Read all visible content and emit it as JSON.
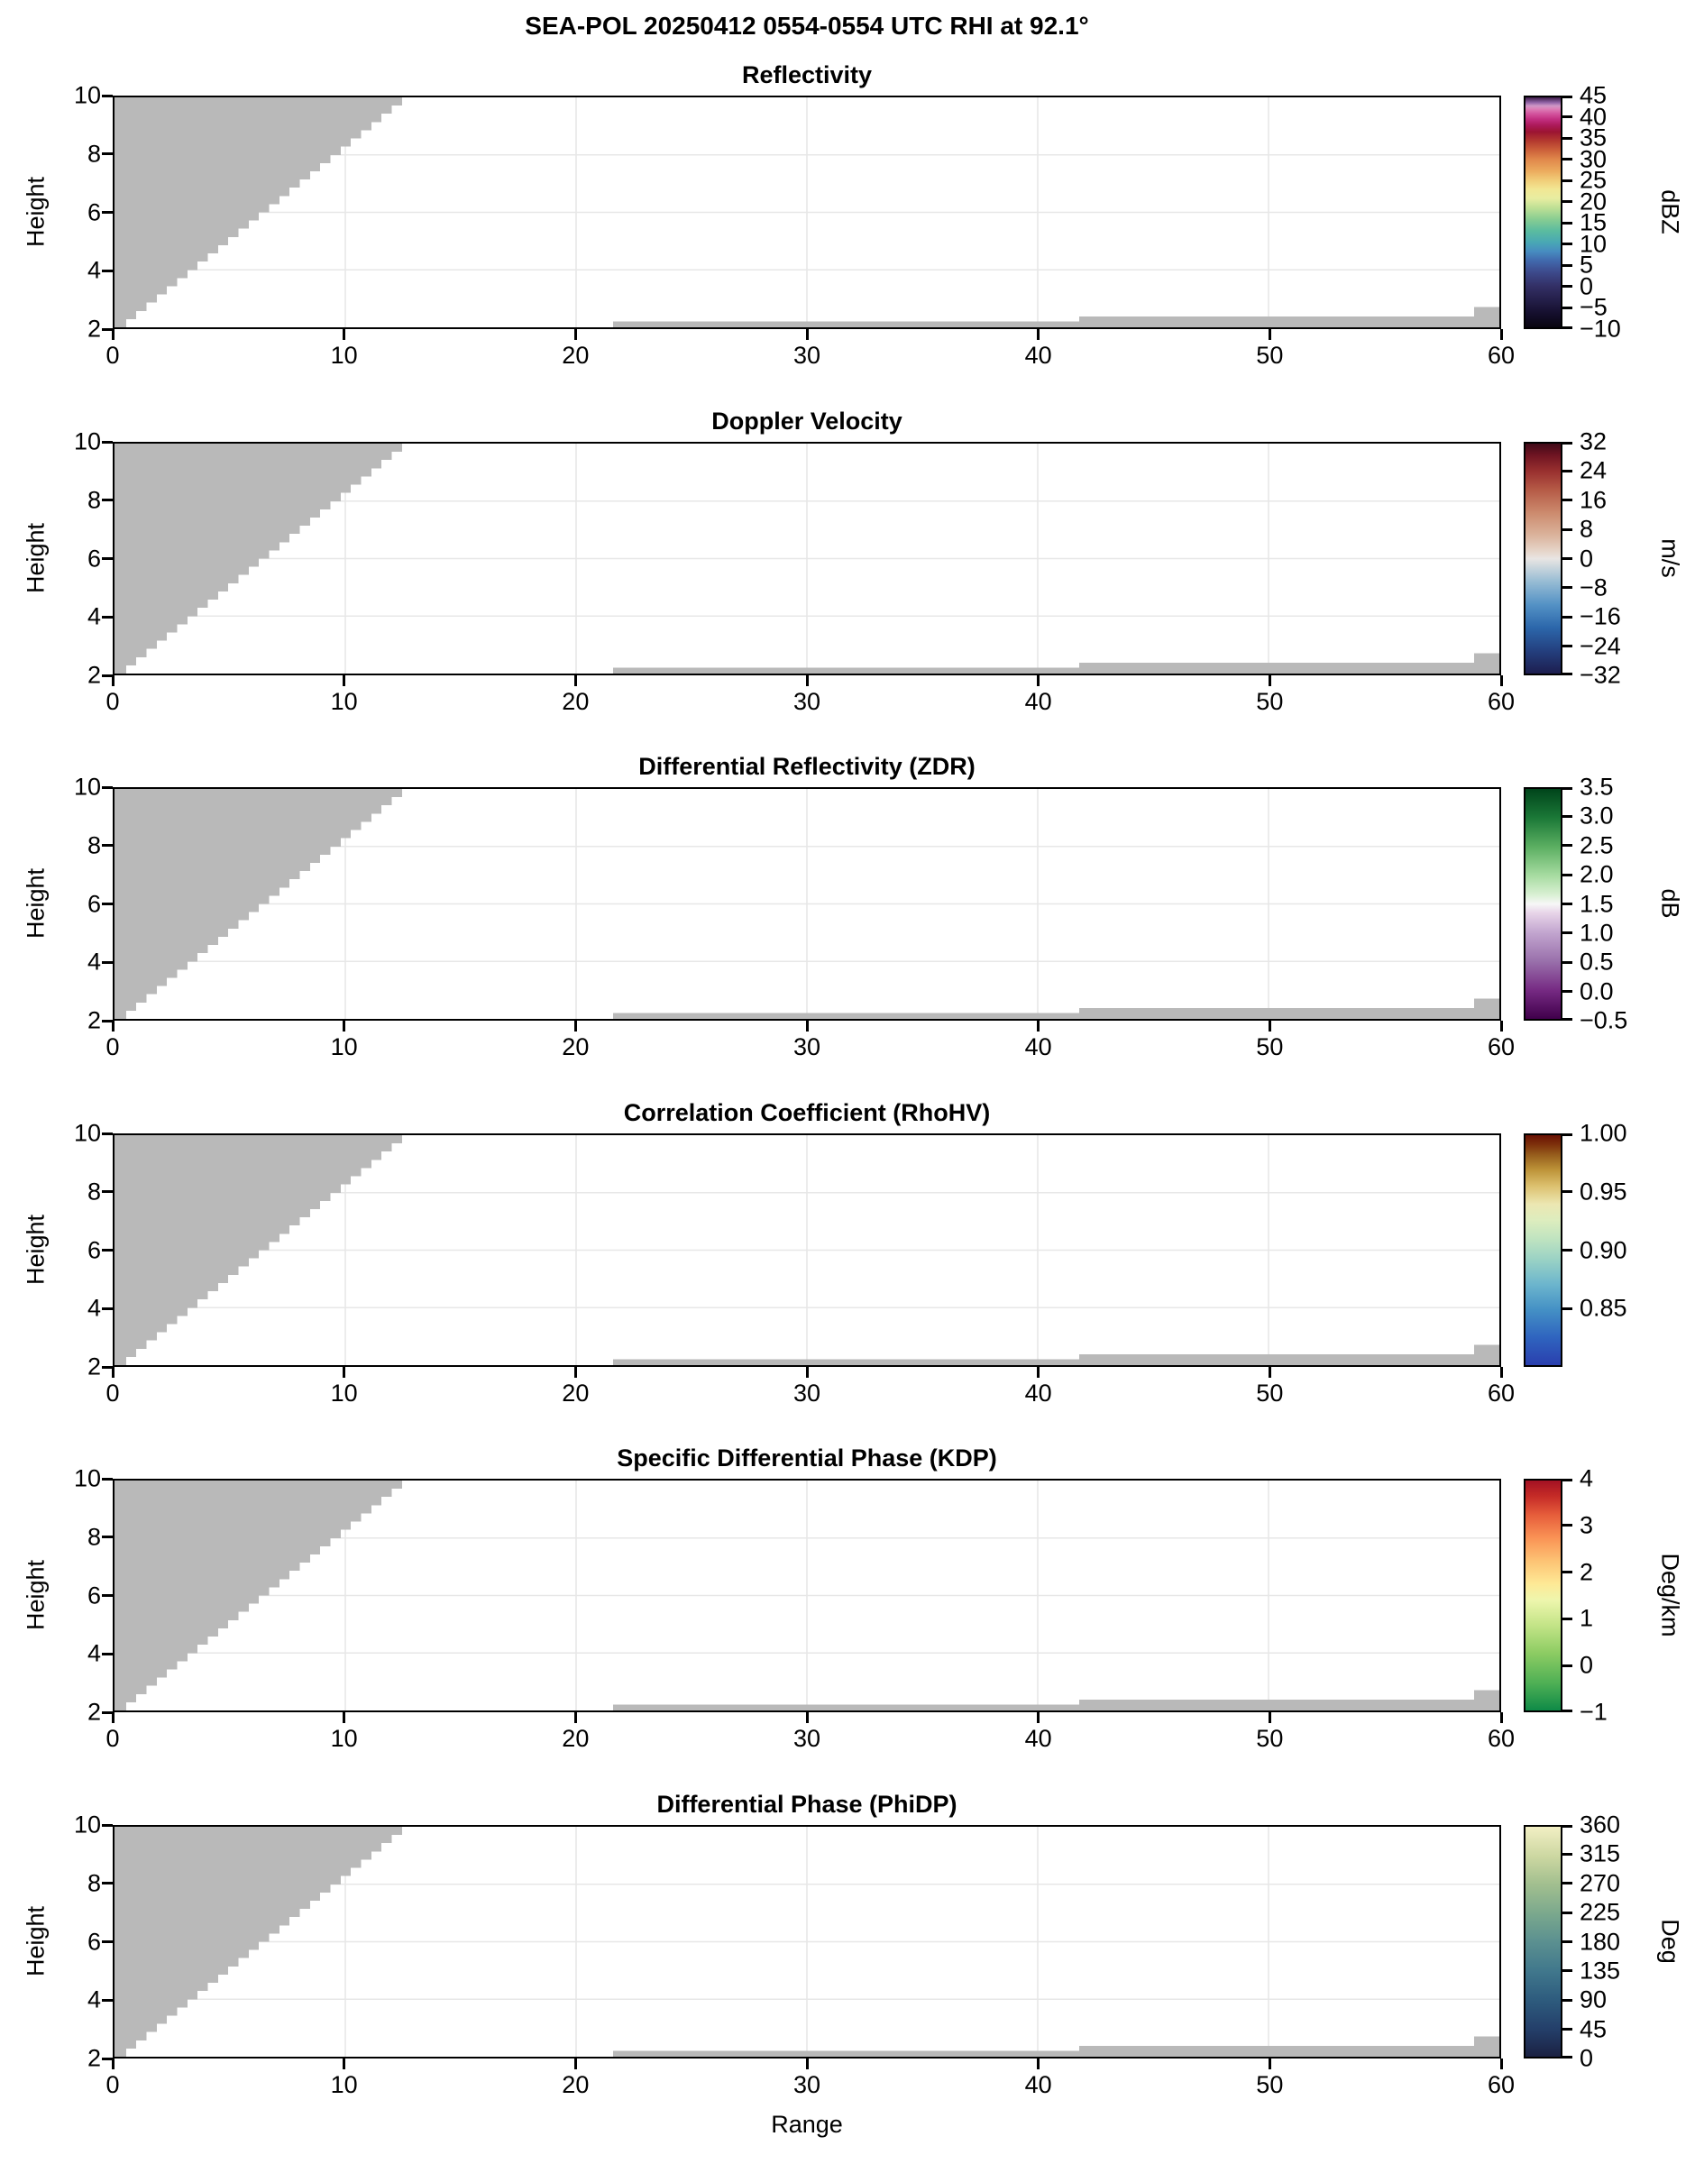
{
  "figure": {
    "suptitle": "SEA-POL 20250412 0554-0554 UTC RHI at 92.1°"
  },
  "chart_data": {
    "type": "heatmap",
    "note": "Six-panel radar RHI cross-sections. All displayed bins are empty (white = no echo); solid light-gray regions are the no-data mask: a stepped wedge near the radar (range 0 to ~12.9 at heights 2-10) and thin low-level strips at far range.",
    "axes": {
      "xlabel": "Range",
      "ylabel": "Height",
      "xlim": [
        0,
        60
      ],
      "ylim": [
        2,
        10
      ],
      "x_ticks": [
        [
          0,
          "0"
        ],
        [
          10,
          "10"
        ],
        [
          20,
          "20"
        ],
        [
          30,
          "30"
        ],
        [
          40,
          "40"
        ],
        [
          50,
          "50"
        ],
        [
          60,
          "60"
        ]
      ],
      "y_ticks": [
        [
          2,
          "2"
        ],
        [
          4,
          "4"
        ],
        [
          6,
          "6"
        ],
        [
          8,
          "8"
        ],
        [
          10,
          "10"
        ]
      ],
      "grid_x": [
        10,
        20,
        30,
        40,
        50
      ],
      "grid_y": [
        4,
        6,
        8
      ],
      "grid_color": "#e7e7e7",
      "spine_color": "#000000"
    },
    "mask": {
      "color": "#b9b9b9",
      "triangle": {
        "x0": 0.5,
        "y0": 2.0,
        "x1": 12.9,
        "y1": 10.0,
        "steps": 28
      },
      "strips": [
        {
          "x0": 21.6,
          "y0": 2.0,
          "x1": 41.8,
          "y1": 2.2
        },
        {
          "x0": 41.8,
          "y0": 2.0,
          "x1": 60.0,
          "y1": 2.38
        },
        {
          "x0": 58.9,
          "y0": 2.0,
          "x1": 60.0,
          "y1": 2.7
        }
      ]
    },
    "panels": [
      {
        "title": "Reflectivity",
        "units": "dBZ",
        "cb": {
          "vmin": -10,
          "vmax": 45,
          "ticks": [
            [
              45,
              "45"
            ],
            [
              40,
              "40"
            ],
            [
              35,
              "35"
            ],
            [
              30,
              "30"
            ],
            [
              25,
              "25"
            ],
            [
              20,
              "20"
            ],
            [
              15,
              "15"
            ],
            [
              10,
              "10"
            ],
            [
              5,
              "5"
            ],
            [
              0,
              "0"
            ],
            [
              -5,
              "−5"
            ],
            [
              -10,
              "−10"
            ]
          ],
          "gradient": [
            [
              0,
              "#08050f"
            ],
            [
              0.06,
              "#150f2d"
            ],
            [
              0.12,
              "#241f4a"
            ],
            [
              0.18,
              "#333066"
            ],
            [
              0.24,
              "#3d4a8c"
            ],
            [
              0.29,
              "#4169ad"
            ],
            [
              0.33,
              "#478cc0"
            ],
            [
              0.37,
              "#49a8b4"
            ],
            [
              0.42,
              "#5bbc9f"
            ],
            [
              0.47,
              "#88cd92"
            ],
            [
              0.52,
              "#bfe095"
            ],
            [
              0.56,
              "#e7eda1"
            ],
            [
              0.6,
              "#f2e794"
            ],
            [
              0.64,
              "#f1cd78"
            ],
            [
              0.68,
              "#ecab5e"
            ],
            [
              0.73,
              "#e0884b"
            ],
            [
              0.77,
              "#cd613a"
            ],
            [
              0.81,
              "#b43a2f"
            ],
            [
              0.85,
              "#9c1432"
            ],
            [
              0.88,
              "#ad1a5c"
            ],
            [
              0.905,
              "#c22f81"
            ],
            [
              0.93,
              "#d4569f"
            ],
            [
              0.95,
              "#dc7fb8"
            ],
            [
              0.963,
              "#cf97c6"
            ],
            [
              0.978,
              "#8f62a5"
            ],
            [
              1,
              "#3d1b47"
            ]
          ]
        }
      },
      {
        "title": "Doppler Velocity",
        "units": "m/s",
        "cb": {
          "vmin": -32,
          "vmax": 32,
          "ticks": [
            [
              32,
              "32"
            ],
            [
              24,
              "24"
            ],
            [
              16,
              "16"
            ],
            [
              8,
              "8"
            ],
            [
              0,
              "0"
            ],
            [
              -8,
              "−8"
            ],
            [
              -16,
              "−16"
            ],
            [
              -24,
              "−24"
            ],
            [
              -32,
              "−32"
            ]
          ],
          "gradient": [
            [
              0,
              "#1d1e4f"
            ],
            [
              0.1,
              "#24407f"
            ],
            [
              0.2,
              "#2c67ab"
            ],
            [
              0.3,
              "#5492c5"
            ],
            [
              0.4,
              "#97bcd4"
            ],
            [
              0.47,
              "#d0d9de"
            ],
            [
              0.5,
              "#e9e5e3"
            ],
            [
              0.53,
              "#e6d6cb"
            ],
            [
              0.6,
              "#dbb49d"
            ],
            [
              0.7,
              "#cc8a6d"
            ],
            [
              0.8,
              "#b55a46"
            ],
            [
              0.88,
              "#99302f"
            ],
            [
              0.95,
              "#6f1422"
            ],
            [
              1,
              "#400a18"
            ]
          ]
        }
      },
      {
        "title": "Differential Reflectivity (ZDR)",
        "units": "dB",
        "cb": {
          "vmin": -0.5,
          "vmax": 3.5,
          "ticks": [
            [
              3.5,
              "3.5"
            ],
            [
              3.0,
              "3.0"
            ],
            [
              2.5,
              "2.5"
            ],
            [
              2.0,
              "2.0"
            ],
            [
              1.5,
              "1.5"
            ],
            [
              1.0,
              "1.0"
            ],
            [
              0.5,
              "0.5"
            ],
            [
              0.0,
              "0.0"
            ],
            [
              -0.5,
              "−0.5"
            ]
          ],
          "gradient": [
            [
              0,
              "#40004b"
            ],
            [
              0.125,
              "#762a83"
            ],
            [
              0.25,
              "#9970ab"
            ],
            [
              0.375,
              "#c2a5cf"
            ],
            [
              0.46,
              "#e7d4e8"
            ],
            [
              0.5,
              "#f7f7f7"
            ],
            [
              0.54,
              "#d9f0d3"
            ],
            [
              0.625,
              "#a6dba0"
            ],
            [
              0.75,
              "#5aae61"
            ],
            [
              0.875,
              "#1b7837"
            ],
            [
              1,
              "#00441b"
            ]
          ]
        }
      },
      {
        "title": "Correlation Coefficient (RhoHV)",
        "units": "",
        "cb": {
          "vmin": 0.8,
          "vmax": 1.0,
          "ticks": [
            [
              1.0,
              "1.00"
            ],
            [
              0.95,
              "0.95"
            ],
            [
              0.9,
              "0.90"
            ],
            [
              0.85,
              "0.85"
            ]
          ],
          "gradient": [
            [
              0,
              "#2a3fae"
            ],
            [
              0.12,
              "#2f64bf"
            ],
            [
              0.24,
              "#4490c5"
            ],
            [
              0.35,
              "#6cb5cd"
            ],
            [
              0.45,
              "#96d0c5"
            ],
            [
              0.55,
              "#c0e4c0"
            ],
            [
              0.63,
              "#ddedbe"
            ],
            [
              0.7,
              "#ece7b2"
            ],
            [
              0.78,
              "#dcc06e"
            ],
            [
              0.85,
              "#bd9338"
            ],
            [
              0.91,
              "#99611e"
            ],
            [
              0.96,
              "#7d300b"
            ],
            [
              1,
              "#691104"
            ]
          ]
        }
      },
      {
        "title": "Specific Differential Phase (KDP)",
        "units": "Deg/km",
        "cb": {
          "vmin": -1,
          "vmax": 4,
          "ticks": [
            [
              4,
              "4"
            ],
            [
              3,
              "3"
            ],
            [
              2,
              "2"
            ],
            [
              1,
              "1"
            ],
            [
              0,
              "0"
            ],
            [
              -1,
              "−1"
            ]
          ],
          "gradient": [
            [
              0,
              "#0f8a47"
            ],
            [
              0.12,
              "#4fb055"
            ],
            [
              0.25,
              "#8dcc63"
            ],
            [
              0.37,
              "#c3e487"
            ],
            [
              0.48,
              "#eef6ad"
            ],
            [
              0.55,
              "#fee996"
            ],
            [
              0.65,
              "#fdc374"
            ],
            [
              0.75,
              "#fa9355"
            ],
            [
              0.85,
              "#e65d3b"
            ],
            [
              0.93,
              "#c62c27"
            ],
            [
              1,
              "#a31123"
            ]
          ]
        }
      },
      {
        "title": "Differential Phase (PhiDP)",
        "units": "Deg",
        "cb": {
          "vmin": 0,
          "vmax": 360,
          "ticks": [
            [
              360,
              "360"
            ],
            [
              315,
              "315"
            ],
            [
              270,
              "270"
            ],
            [
              225,
              "225"
            ],
            [
              180,
              "180"
            ],
            [
              135,
              "135"
            ],
            [
              90,
              "90"
            ],
            [
              45,
              "45"
            ],
            [
              0,
              "0"
            ]
          ],
          "gradient": [
            [
              0,
              "#1b2142"
            ],
            [
              0.12,
              "#243f6a"
            ],
            [
              0.25,
              "#2e5c7e"
            ],
            [
              0.37,
              "#40778c"
            ],
            [
              0.5,
              "#5b9090"
            ],
            [
              0.62,
              "#7aa88d"
            ],
            [
              0.75,
              "#a2bf8f"
            ],
            [
              0.87,
              "#ccd7a1"
            ],
            [
              1,
              "#f2efc4"
            ]
          ]
        }
      }
    ]
  }
}
